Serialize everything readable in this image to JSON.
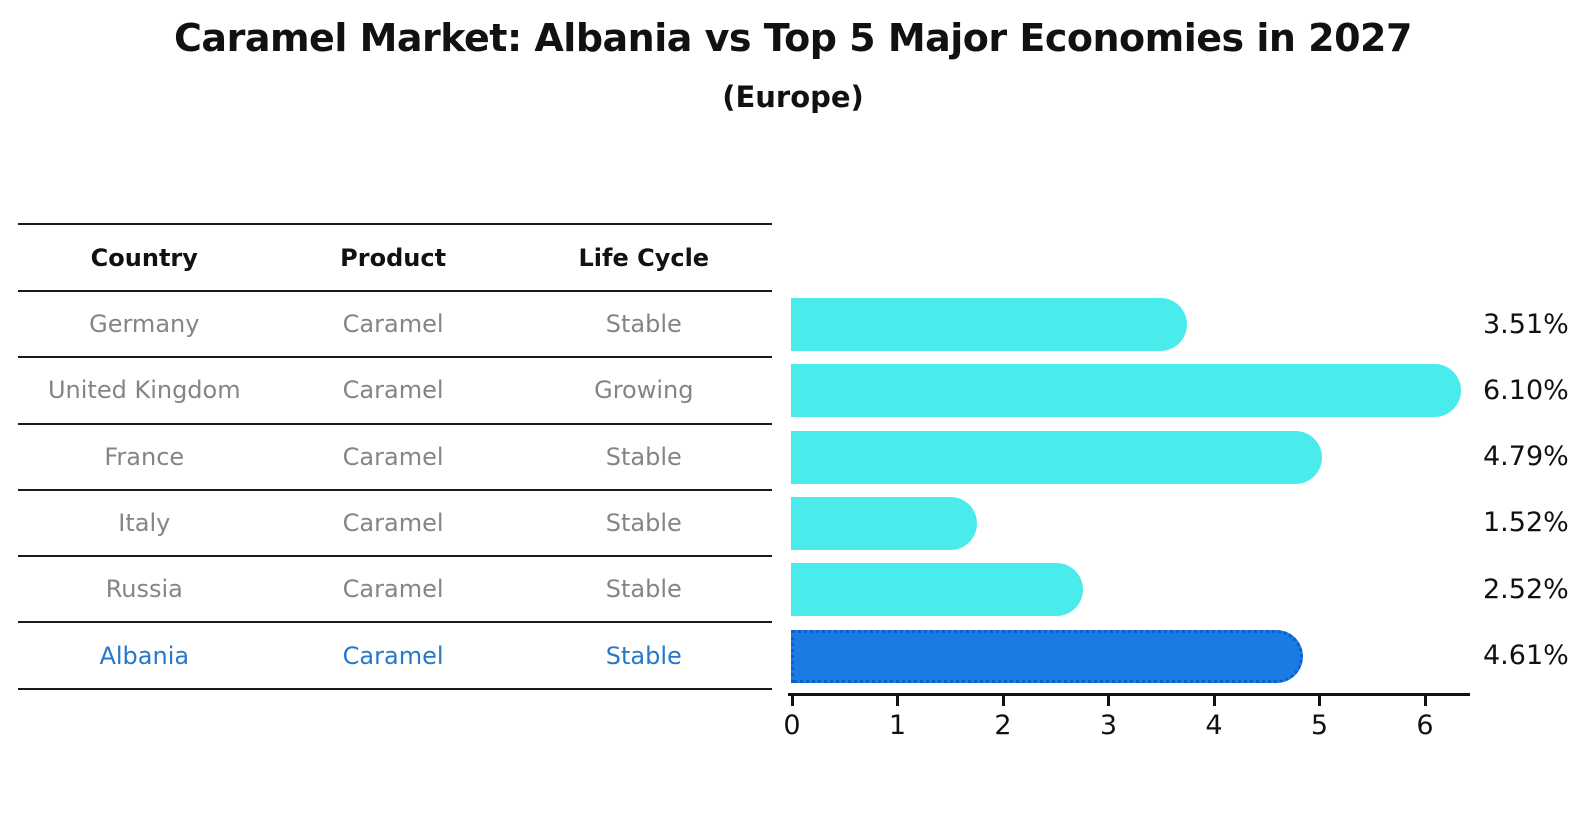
{
  "title": "Caramel Market: Albania vs Top 5 Major Economies in 2027",
  "subtitle": "(Europe)",
  "table": {
    "headers": [
      "Country",
      "Product",
      "Life Cycle"
    ],
    "rows": [
      {
        "country": "Germany",
        "product": "Caramel",
        "life_cycle": "Stable"
      },
      {
        "country": "United Kingdom",
        "product": "Caramel",
        "life_cycle": "Growing"
      },
      {
        "country": "France",
        "product": "Caramel",
        "life_cycle": "Stable"
      },
      {
        "country": "Italy",
        "product": "Caramel",
        "life_cycle": "Stable"
      },
      {
        "country": "Russia",
        "product": "Caramel",
        "life_cycle": "Stable"
      },
      {
        "country": "Albania",
        "product": "Caramel",
        "life_cycle": "Stable"
      }
    ]
  },
  "chart_data": {
    "type": "bar",
    "orientation": "horizontal",
    "title": "Caramel Market: Albania vs Top 5 Major Economies in 2027",
    "subtitle": "(Europe)",
    "categories": [
      "Germany",
      "United Kingdom",
      "France",
      "Italy",
      "Russia",
      "Albania"
    ],
    "values": [
      3.51,
      6.1,
      4.79,
      1.52,
      2.52,
      4.61
    ],
    "value_labels": [
      "3.51%",
      "6.10%",
      "4.79%",
      "1.52%",
      "2.52%",
      "4.61%"
    ],
    "x_ticks": [
      0,
      1,
      2,
      3,
      4,
      5,
      6
    ],
    "xlim": [
      0,
      6.4
    ],
    "grid": false,
    "legend": "none",
    "bar_color": "#4aebeb",
    "highlight_index": 5,
    "highlight_color": "#1a7be5",
    "highlight_border_color": "#0c5fd0",
    "value_unit": "%"
  },
  "colors": {
    "row_text": "#858585",
    "highlight_text": "#2678c8",
    "header_text": "#111111",
    "axis": "#111111"
  }
}
